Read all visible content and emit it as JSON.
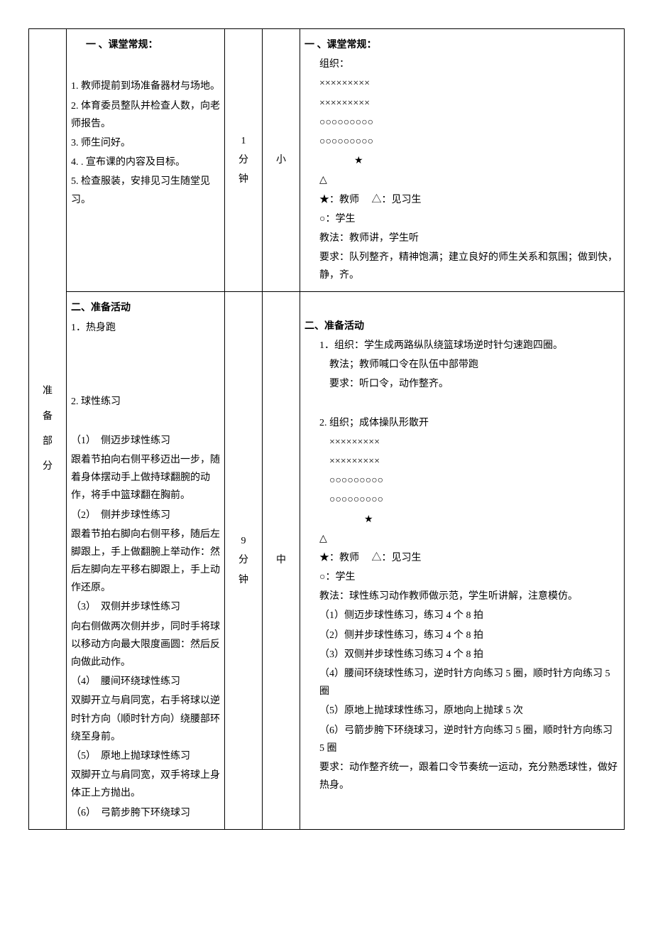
{
  "section_label_chars": [
    "准",
    "备",
    "部",
    "分"
  ],
  "row1": {
    "content": {
      "title": "一 、课堂常规：",
      "items": [
        "1. 教师提前到场准备器材与场地。",
        "2. 体育委员整队并检查人数，向老师报告。",
        "3. 师生问好。",
        "4. . 宣布课的内容及目标。",
        "5. 检查服装，安排见习生随堂见习。"
      ]
    },
    "time_chars": [
      "1",
      "分",
      "钟"
    ],
    "intensity": "小",
    "org": {
      "title": "一 、课堂常规：",
      "org_label": "组织：",
      "rows_x": "×××××××××",
      "rows_o": "○○○○○○○○○",
      "star": "★",
      "triangle": "△",
      "legend_star": "★：教师",
      "legend_tri": "△：见习生",
      "legend_circle": "○：学生",
      "method": "教法：教师讲，学生听",
      "req": "要求：队列整齐，精神饱满；建立良好的师生关系和氛围；做到快，静，齐。"
    }
  },
  "row2": {
    "content": {
      "title": "二、准备活动",
      "sub1": "1．热身跑",
      "sub2": "2. 球性练习",
      "ex": [
        {
          "h": "（1）　侧迈步球性练习",
          "d": "跟着节拍向右侧平移迈出一步，随着身体摆动手上做持球翻腕的动作，将手中篮球翻在胸前。"
        },
        {
          "h": "（2）　侧并步球性练习",
          "d": "跟着节拍右脚向右侧平移，随后左脚跟上，手上做翻腕上举动作：然后左脚向左平移右脚跟上，手上动作还原。"
        },
        {
          "h": "（3）　双侧并步球性练习",
          "d": "向右侧做两次侧并步，同时手将球以移动方向最大限度画圆：然后反向做此动作。"
        },
        {
          "h": "（4）　腰间环绕球性练习",
          "d": "双脚开立与肩同宽，右手将球以逆时针方向（顺时针方向）绕腰部环绕至身前。"
        },
        {
          "h": "（5）　原地上抛球球性练习",
          "d": "双脚开立与肩同宽，双手将球上身体正上方抛出。"
        },
        {
          "h": "（6）　弓箭步胯下环绕球习",
          "d": ""
        }
      ]
    },
    "time_chars": [
      "9",
      "分",
      "钟"
    ],
    "intensity": "中",
    "org": {
      "title": "二、准备活动",
      "p1_org": "1．组织：学生成两路纵队绕篮球场逆时针匀速跑四圈。",
      "p1_method": "教法；教师喊口令在队伍中部带跑",
      "p1_req": "要求：听口令，动作整齐。",
      "p2_org": "2. 组织；成体操队形散开",
      "rows_x": "×××××××××",
      "rows_o": "○○○○○○○○○",
      "star": "★",
      "triangle": "△",
      "legend_star": "★：教师",
      "legend_tri": "△：见习生",
      "legend_circle": "○：学生",
      "p2_method": "教法：球性练习动作教师做示范，学生听讲解，注意模仿。",
      "reps": [
        "（1）侧迈步球性练习，练习 4 个 8 拍",
        "（2）侧并步球性练习，练习 4 个 8 拍",
        "（3）双侧并步球性练习练习 4 个 8 拍",
        "（4）腰间环绕球性练习，逆时针方向练习 5 圈，顺时针方向练习 5 圈",
        "（5）原地上抛球球性练习，原地向上抛球 5 次",
        "（6）弓箭步胯下环绕球习，逆时针方向练习 5 圈，顺时针方向练习 5 圈"
      ],
      "p2_req": "要求：动作整齐统一，跟着口令节奏统一运动，充分熟悉球性，做好热身。"
    }
  }
}
